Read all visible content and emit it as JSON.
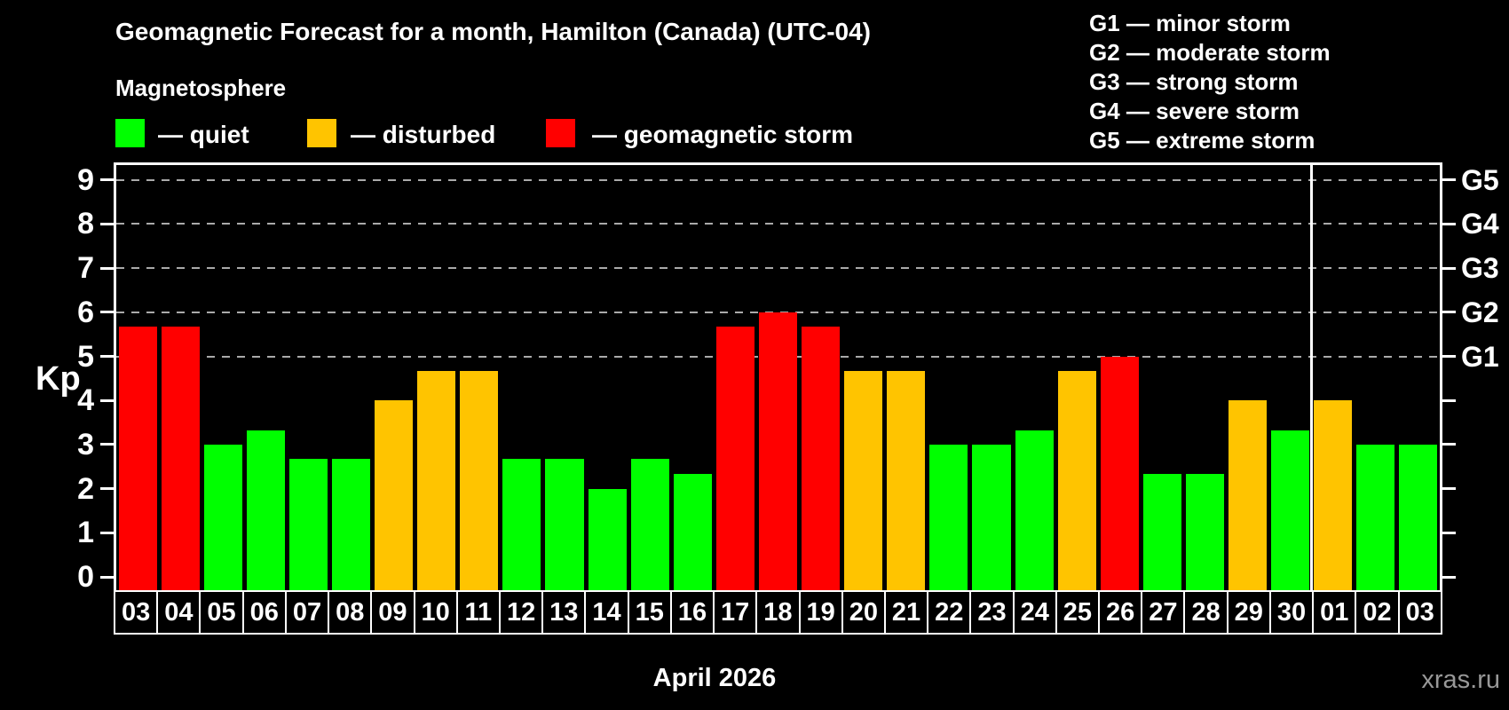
{
  "header": {
    "title": "Geomagnetic Forecast for a month, Hamilton (Canada) (UTC-04)",
    "subtitle": "Magnetosphere"
  },
  "legend": {
    "items": [
      {
        "status": "quiet",
        "label": "— quiet"
      },
      {
        "status": "disturbed",
        "label": "— disturbed"
      },
      {
        "status": "storm",
        "label": "— geomagnetic storm"
      }
    ]
  },
  "storm_scale_legend": {
    "lines": [
      "G1 — minor storm",
      "G2 — moderate storm",
      "G3 — strong storm",
      "G4 — severe storm",
      "G5 — extreme storm"
    ]
  },
  "colors": {
    "quiet": "#00ff00",
    "disturbed": "#ffc400",
    "storm": "#ff0000",
    "grid": "#aaaaaa",
    "axis": "#ffffff",
    "background": "#000000",
    "watermark": "#989898"
  },
  "chart_data": {
    "type": "bar",
    "title": "Geomagnetic Forecast for a month, Hamilton (Canada) (UTC-04)",
    "ylabel": "Kp",
    "xlabel": "April 2026",
    "ylim": [
      0,
      9.4
    ],
    "yticks": [
      0,
      1,
      2,
      3,
      4,
      5,
      6,
      7,
      8,
      9
    ],
    "gridlines_at_kp": [
      5,
      6,
      7,
      8,
      9
    ],
    "grid": true,
    "legend_position": "top",
    "right_axis": [
      {
        "label": "G1",
        "kp": 5
      },
      {
        "label": "G2",
        "kp": 6
      },
      {
        "label": "G3",
        "kp": 7
      },
      {
        "label": "G4",
        "kp": 8
      },
      {
        "label": "G5",
        "kp": 9
      }
    ],
    "month_separator_after_index": 27,
    "bars": [
      {
        "day": "03",
        "kp": 5.67,
        "status": "storm"
      },
      {
        "day": "04",
        "kp": 5.67,
        "status": "storm"
      },
      {
        "day": "05",
        "kp": 3.0,
        "status": "quiet"
      },
      {
        "day": "06",
        "kp": 3.33,
        "status": "quiet"
      },
      {
        "day": "07",
        "kp": 2.67,
        "status": "quiet"
      },
      {
        "day": "08",
        "kp": 2.67,
        "status": "quiet"
      },
      {
        "day": "09",
        "kp": 4.0,
        "status": "disturbed"
      },
      {
        "day": "10",
        "kp": 4.67,
        "status": "disturbed"
      },
      {
        "day": "11",
        "kp": 4.67,
        "status": "disturbed"
      },
      {
        "day": "12",
        "kp": 2.67,
        "status": "quiet"
      },
      {
        "day": "13",
        "kp": 2.67,
        "status": "quiet"
      },
      {
        "day": "14",
        "kp": 2.0,
        "status": "quiet"
      },
      {
        "day": "15",
        "kp": 2.67,
        "status": "quiet"
      },
      {
        "day": "16",
        "kp": 2.33,
        "status": "quiet"
      },
      {
        "day": "17",
        "kp": 5.67,
        "status": "storm"
      },
      {
        "day": "18",
        "kp": 6.0,
        "status": "storm"
      },
      {
        "day": "19",
        "kp": 5.67,
        "status": "storm"
      },
      {
        "day": "20",
        "kp": 4.67,
        "status": "disturbed"
      },
      {
        "day": "21",
        "kp": 4.67,
        "status": "disturbed"
      },
      {
        "day": "22",
        "kp": 3.0,
        "status": "quiet"
      },
      {
        "day": "23",
        "kp": 3.0,
        "status": "quiet"
      },
      {
        "day": "24",
        "kp": 3.33,
        "status": "quiet"
      },
      {
        "day": "25",
        "kp": 4.67,
        "status": "disturbed"
      },
      {
        "day": "26",
        "kp": 5.0,
        "status": "storm"
      },
      {
        "day": "27",
        "kp": 2.33,
        "status": "quiet"
      },
      {
        "day": "28",
        "kp": 2.33,
        "status": "quiet"
      },
      {
        "day": "29",
        "kp": 4.0,
        "status": "disturbed"
      },
      {
        "day": "30",
        "kp": 3.33,
        "status": "quiet"
      },
      {
        "day": "01",
        "kp": 4.0,
        "status": "disturbed"
      },
      {
        "day": "02",
        "kp": 3.0,
        "status": "quiet"
      },
      {
        "day": "03",
        "kp": 3.0,
        "status": "quiet"
      }
    ]
  },
  "footer": {
    "month_label": "April 2026",
    "watermark": "xras.ru"
  }
}
